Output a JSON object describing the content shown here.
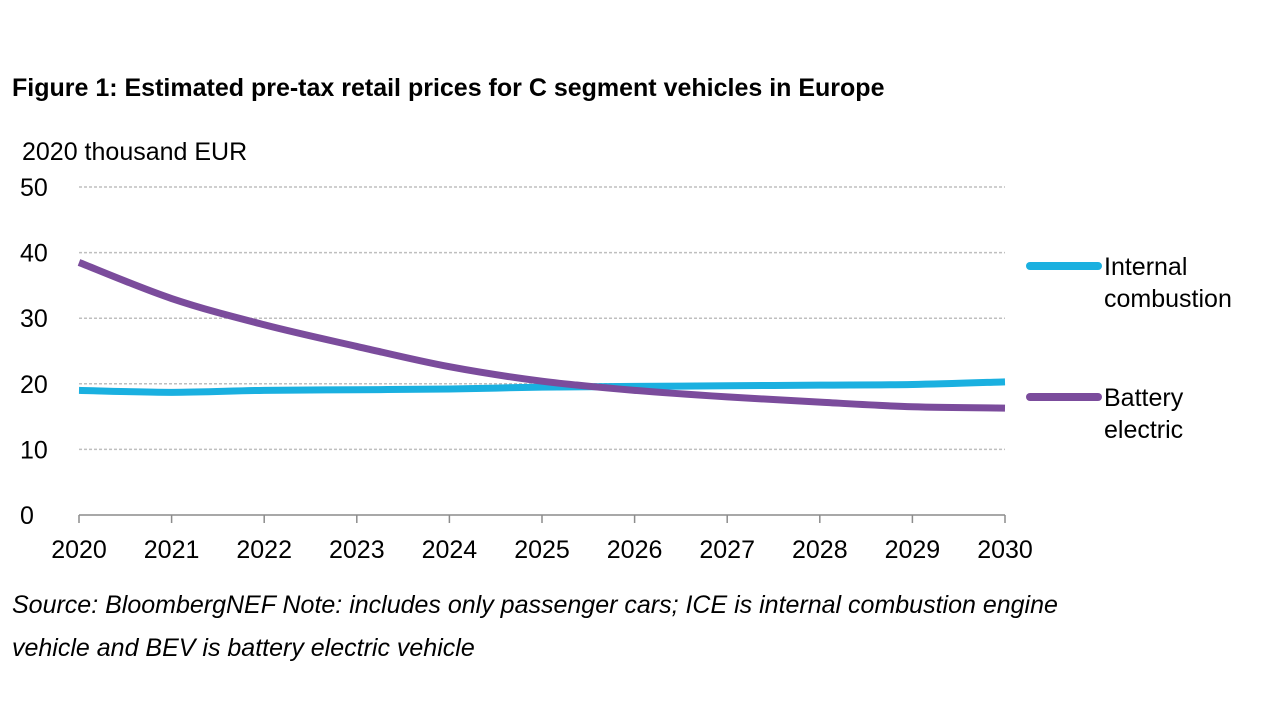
{
  "title": "Figure 1: Estimated pre-tax retail prices for C segment vehicles in Europe",
  "unit_label": "2020 thousand EUR",
  "legend": {
    "ice_line1": "Internal",
    "ice_line2": "combustion",
    "bev_line1": "Battery",
    "bev_line2": "electric"
  },
  "source": {
    "line1": "Source: BloombergNEF Note: includes only passenger cars; ICE is internal combustion engine",
    "line2": "vehicle and BEV is battery electric vehicle"
  },
  "chart_data": {
    "type": "line",
    "title": "Figure 1: Estimated pre-tax retail prices for C segment vehicles in Europe",
    "ylabel": "2020 thousand EUR",
    "xlabel": "",
    "x": [
      2020,
      2021,
      2022,
      2023,
      2024,
      2025,
      2026,
      2027,
      2028,
      2029,
      2030
    ],
    "ylim": [
      0,
      50
    ],
    "yticks": [
      0,
      10,
      20,
      30,
      40,
      50
    ],
    "grid": true,
    "legend_position": "right",
    "series": [
      {
        "name": "Internal combustion",
        "color": "#1ab0e0",
        "values": [
          19.0,
          18.7,
          19.0,
          19.1,
          19.2,
          19.5,
          19.6,
          19.7,
          19.8,
          19.9,
          20.3
        ]
      },
      {
        "name": "Battery electric",
        "color": "#7b4c9c",
        "values": [
          38.5,
          33.0,
          29.0,
          25.7,
          22.6,
          20.4,
          19.0,
          18.0,
          17.2,
          16.5,
          16.3
        ]
      }
    ]
  }
}
